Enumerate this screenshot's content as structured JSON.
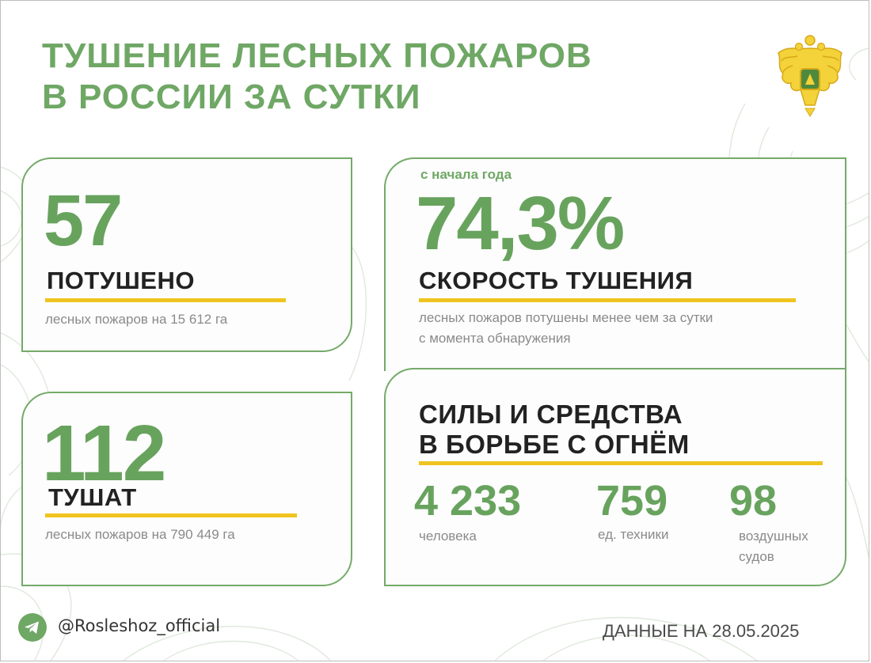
{
  "header": {
    "title_line1": "ТУШЕНИЕ ЛЕСНЫХ ПОЖАРОВ",
    "title_line2": "В РОССИИ ЗА СУТКИ"
  },
  "emblem_icon": "russian-eagle-emblem",
  "extinguished": {
    "value": "57",
    "label": "ПОТУШЕНО",
    "desc": "лесных пожаров на 15 612 га"
  },
  "active": {
    "value": "112",
    "label": "ТУШАТ",
    "desc": "лесных пожаров на 790 449 га"
  },
  "speed": {
    "since": "с начала года",
    "value": "74,3%",
    "label": "СКОРОСТЬ ТУШЕНИЯ",
    "desc_line1": "лесных пожаров потушены менее чем за сутки",
    "desc_line2": "с момента обнаружения"
  },
  "forces": {
    "title_line1": "СИЛЫ И СРЕДСТВА",
    "title_line2": "В БОРЬБЕ С ОГНЁМ",
    "people": {
      "value": "4 233",
      "label": "человека"
    },
    "equipment": {
      "value": "759",
      "label": "ед. техники"
    },
    "aircraft": {
      "value": "98",
      "label_line1": "воздушных",
      "label_line2": "судов"
    }
  },
  "footer": {
    "icon": "telegram-icon",
    "handle": "@Rosleshoz_official",
    "date": "ДАННЫЕ НА 28.05.2025"
  },
  "colors": {
    "green": "#6fa765",
    "accent_yellow": "#f0c420",
    "text_dark": "#222222",
    "text_gray": "#8a8a8a"
  }
}
